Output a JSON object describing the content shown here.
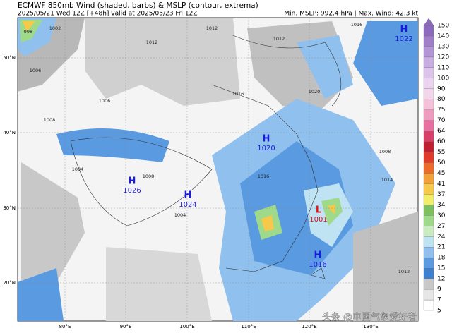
{
  "header": {
    "title": "ECMWF 850mb Wind (shaded, barbs) & MSLP (contour, extrema)",
    "subtitle": "2025/05/21 Wed 12Z [+48h] valid at 2025/05/23 Fri 12Z",
    "stats": "Min. MSLP: 992.4 hPa | Max. Wind: 42.3 kt"
  },
  "map": {
    "lon_labels": [
      "80°E",
      "90°E",
      "100°E",
      "110°E",
      "120°E",
      "130°E"
    ],
    "lat_labels": [
      "50°N",
      "40°N",
      "30°N",
      "20°N"
    ],
    "extrema": [
      {
        "symbol": "H",
        "value": "1022"
      },
      {
        "symbol": "H",
        "value": "1020"
      },
      {
        "symbol": "H",
        "value": "1026"
      },
      {
        "symbol": "H",
        "value": "1024"
      },
      {
        "symbol": "L",
        "value": "1001"
      },
      {
        "symbol": "H",
        "value": "1016"
      }
    ],
    "contour_labels": [
      "998",
      "1002",
      "1006",
      "1008",
      "1012",
      "1016",
      "1016",
      "1020",
      "1012",
      "1008",
      "1004",
      "1016",
      "1008",
      "1012",
      "1006",
      "1014",
      "1012",
      "1004"
    ]
  },
  "colorbar": {
    "levels": [
      5,
      7,
      9,
      12,
      15,
      18,
      21,
      24,
      27,
      30,
      34,
      37,
      41,
      45,
      50,
      55,
      60,
      64,
      70,
      75,
      80,
      90,
      100,
      110,
      120,
      130,
      140,
      150
    ],
    "colors": [
      "#ffffff",
      "#e6e6e6",
      "#c8c8c8",
      "#3f7fd0",
      "#5a9ae0",
      "#8fc0ee",
      "#bfe3f2",
      "#c9ecc0",
      "#9fd98a",
      "#7cc060",
      "#f2ee6a",
      "#f6c94a",
      "#f2a03a",
      "#ec6a2a",
      "#e03a2a",
      "#c02030",
      "#d8406a",
      "#e870a0",
      "#f09cc0",
      "#f6c0d8",
      "#f2d6ec",
      "#ead4f0",
      "#dcc4ec",
      "#c8aee2",
      "#b496d6",
      "#a07ec8",
      "#8c6abe"
    ]
  },
  "watermark": "头条 @中国气象爱好者"
}
